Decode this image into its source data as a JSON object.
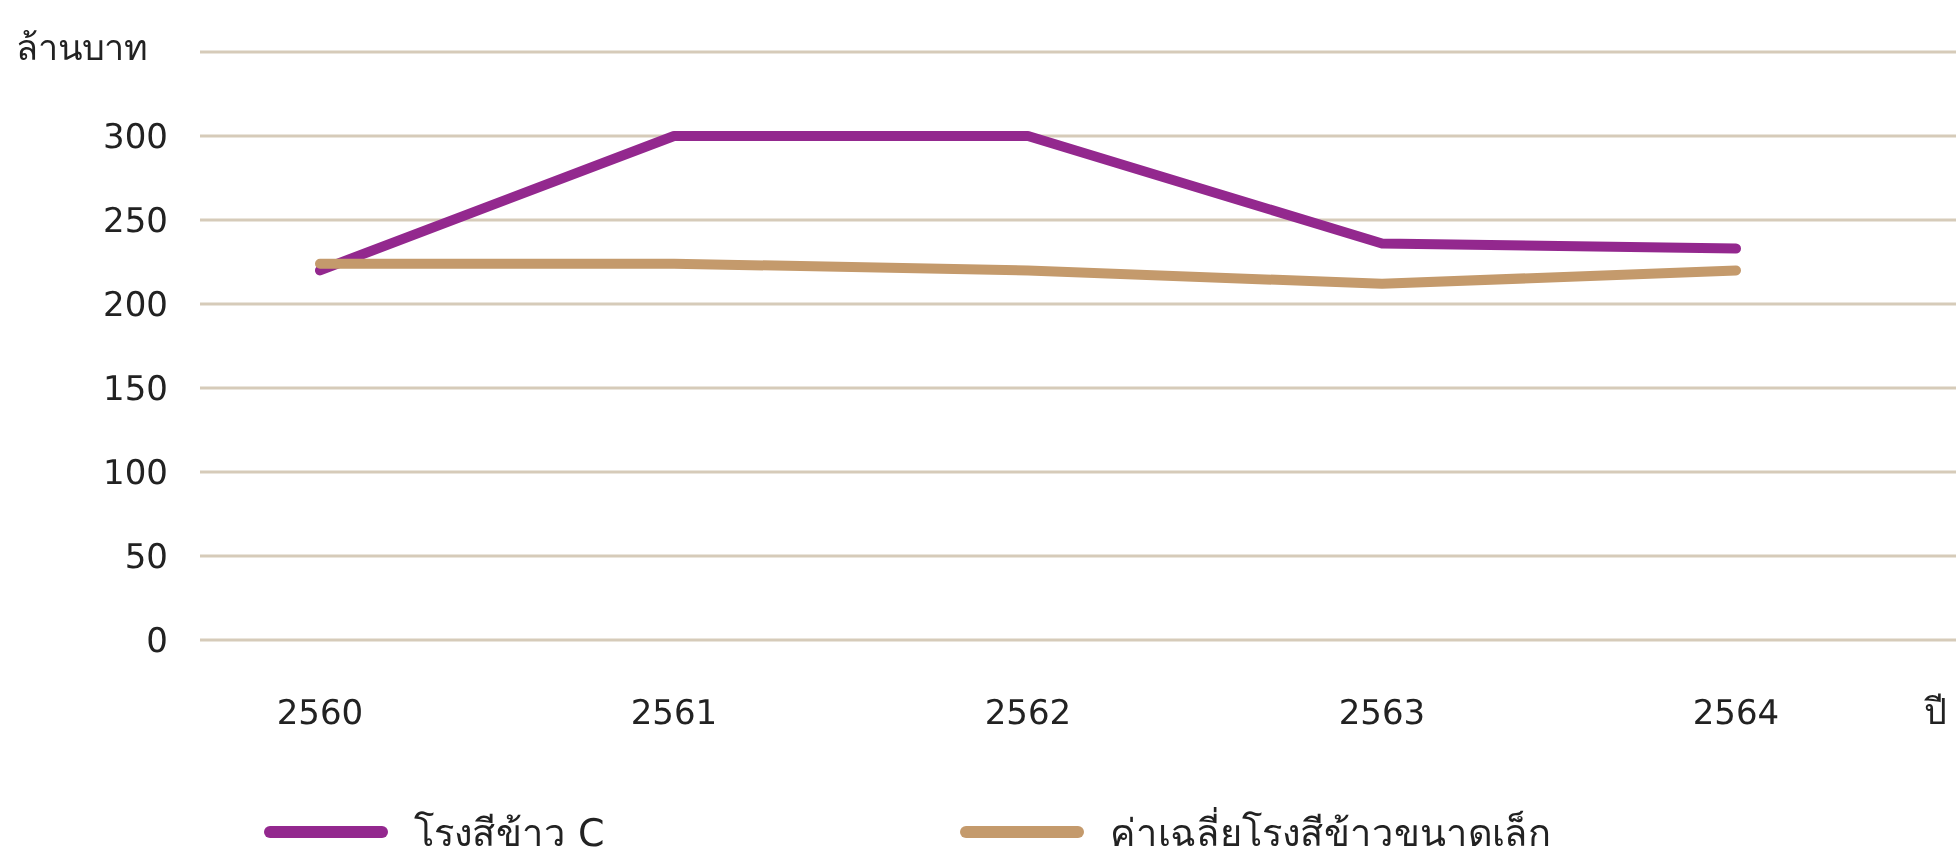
{
  "chart_data": {
    "type": "line",
    "ylabel": "ล้านบาท",
    "xlabel": "ปี",
    "categories": [
      "2560",
      "2561",
      "2562",
      "2563",
      "2564"
    ],
    "series": [
      {
        "name": "โรงสีข้าว C",
        "color": "#93288e",
        "values": [
          220,
          300,
          300,
          236,
          233
        ]
      },
      {
        "name": "ค่าเฉลี่ยโรงสีข้าวขนาดเล็ก",
        "color": "#c49a6c",
        "values": [
          224,
          224,
          220,
          212,
          220
        ]
      }
    ],
    "ylim": [
      0,
      350
    ],
    "yticks": [
      0,
      50,
      100,
      150,
      200,
      250,
      300,
      {
        "value": 350,
        "label": null
      }
    ],
    "grid": "y",
    "legend": "bottom",
    "marker": "none",
    "line_style": "solid"
  }
}
